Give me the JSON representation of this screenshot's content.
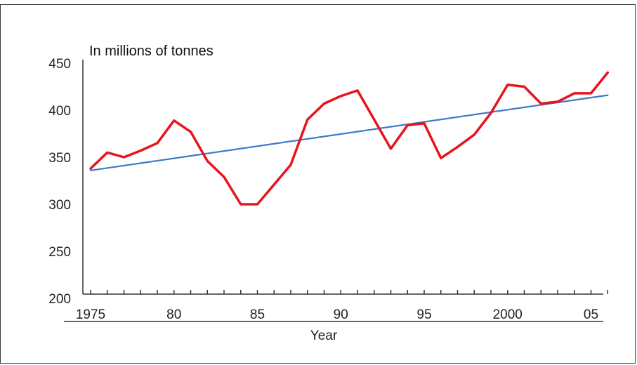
{
  "chart_data": {
    "type": "line",
    "title": "",
    "unit_label": "In millions of tonnes",
    "xlabel": "Year",
    "ylabel": "",
    "ylim": [
      200,
      450
    ],
    "xlim": [
      1975,
      2005
    ],
    "y_ticks": [
      200,
      250,
      300,
      350,
      400,
      450
    ],
    "y_tick_labels": [
      "200",
      "250",
      "300",
      "350",
      "400",
      "450"
    ],
    "x_label_years": [
      1975,
      1980,
      1985,
      1990,
      1995,
      2000,
      2005
    ],
    "x_tick_labels": [
      "1975",
      "80",
      "85",
      "90",
      "95",
      "2000",
      "05"
    ],
    "grid": false,
    "legend": "none",
    "series": [
      {
        "color": "#e8141b",
        "x": [
          1975,
          1976,
          1977,
          1978,
          1979,
          1980,
          1981,
          1982,
          1983,
          1984,
          1985,
          1986,
          1987,
          1988,
          1989,
          1990,
          1991,
          1992,
          1993,
          1994,
          1995,
          1996,
          1997,
          1998,
          1999,
          2000,
          2001,
          2002,
          2003,
          2004,
          2005,
          2006
        ],
        "values": [
          338,
          355,
          350,
          357,
          365,
          389,
          377,
          346,
          329,
          300,
          300,
          321,
          342,
          390,
          407,
          415,
          421,
          390,
          359,
          384,
          386,
          349,
          361,
          374,
          397,
          427,
          425,
          407,
          409,
          418,
          418,
          440
        ]
      },
      {
        "color": "#3b7bc8",
        "x": [
          1975,
          2006
        ],
        "values": [
          336,
          416
        ]
      }
    ]
  }
}
